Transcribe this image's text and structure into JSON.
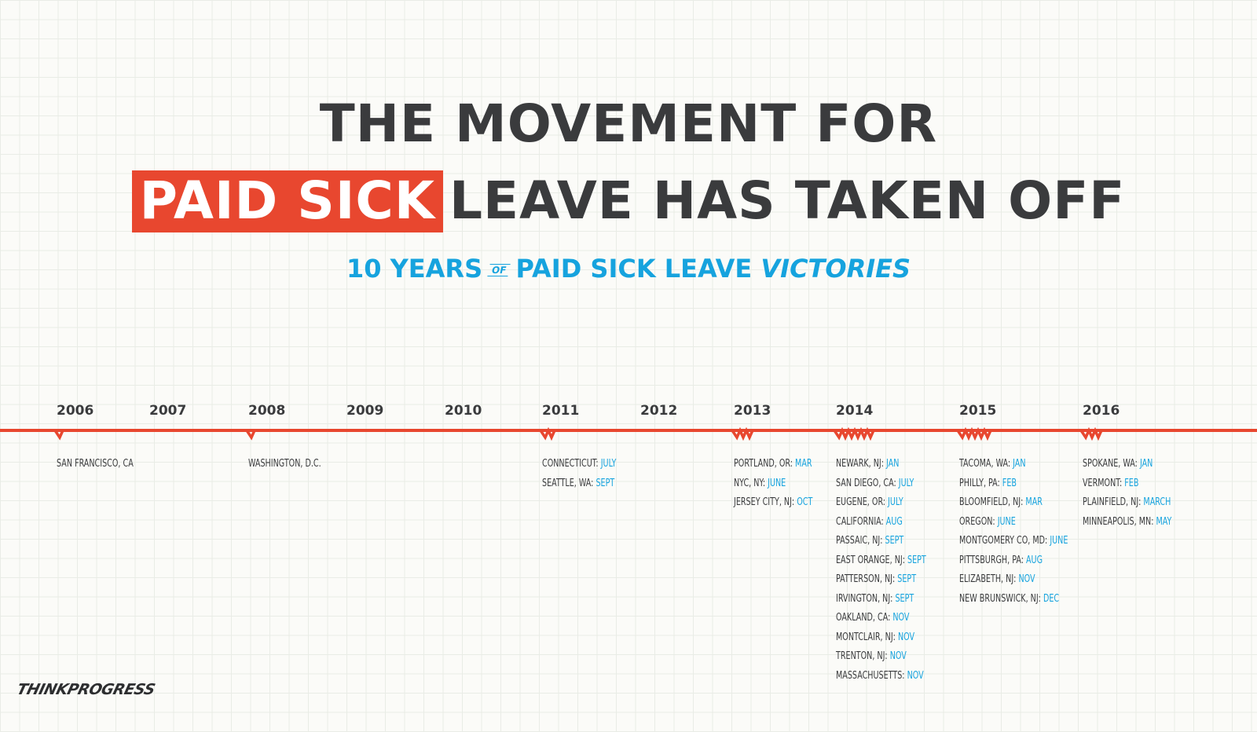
{
  "title": {
    "line1": "THE MOVEMENT FOR",
    "highlight": "PAID SICK",
    "line2_rest": "LEAVE HAS TAKEN OFF"
  },
  "subtitle": {
    "part1": "10 YEARS",
    "of": "OF",
    "part2": "PAID SICK LEAVE",
    "emphasis": "VICTORIES"
  },
  "colors": {
    "accent_red": "#e8472f",
    "accent_blue": "#16a3de",
    "text_dark": "#3a3b3d"
  },
  "timeline": {
    "years": [
      "2006",
      "2007",
      "2008",
      "2009",
      "2010",
      "2011",
      "2012",
      "2013",
      "2014",
      "2015",
      "2016"
    ],
    "groups": [
      {
        "year": "2006",
        "events": [
          {
            "place": "SAN FRANCISCO, CA",
            "month": ""
          }
        ]
      },
      {
        "year": "2008",
        "events": [
          {
            "place": "WASHINGTON, D.C.",
            "month": ""
          }
        ]
      },
      {
        "year": "2011",
        "events": [
          {
            "place": "CONNECTICUT:",
            "month": "JULY"
          },
          {
            "place": "SEATTLE, WA:",
            "month": "SEPT"
          }
        ]
      },
      {
        "year": "2013",
        "events": [
          {
            "place": "PORTLAND, OR:",
            "month": "MAR"
          },
          {
            "place": "NYC, NY:",
            "month": "JUNE"
          },
          {
            "place": "JERSEY CITY, NJ:",
            "month": "OCT"
          }
        ]
      },
      {
        "year": "2014",
        "events": [
          {
            "place": "NEWARK, NJ:",
            "month": "JAN"
          },
          {
            "place": "SAN DIEGO, CA:",
            "month": "JULY"
          },
          {
            "place": "EUGENE, OR:",
            "month": "JULY"
          },
          {
            "place": "CALIFORNIA:",
            "month": "AUG"
          },
          {
            "place": "PASSAIC, NJ:",
            "month": "SEPT"
          },
          {
            "place": "EAST ORANGE, NJ:",
            "month": "SEPT"
          },
          {
            "place": "PATTERSON, NJ:",
            "month": "SEPT"
          },
          {
            "place": "IRVINGTON, NJ:",
            "month": "SEPT"
          },
          {
            "place": "OAKLAND, CA:",
            "month": "NOV"
          },
          {
            "place": "MONTCLAIR, NJ:",
            "month": "NOV"
          },
          {
            "place": "TRENTON, NJ:",
            "month": "NOV"
          },
          {
            "place": "MASSACHUSETTS:",
            "month": "NOV"
          }
        ]
      },
      {
        "year": "2015",
        "events": [
          {
            "place": "TACOMA, WA:",
            "month": "JAN"
          },
          {
            "place": "PHILLY, PA:",
            "month": "FEB"
          },
          {
            "place": "BLOOMFIELD, NJ:",
            "month": "MAR"
          },
          {
            "place": "OREGON:",
            "month": "JUNE"
          },
          {
            "place": "MONTGOMERY CO, MD:",
            "month": "JUNE"
          },
          {
            "place": "PITTSBURGH, PA:",
            "month": "AUG"
          },
          {
            "place": "ELIZABETH, NJ:",
            "month": "NOV"
          },
          {
            "place": "NEW BRUNSWICK, NJ:",
            "month": "DEC"
          }
        ]
      },
      {
        "year": "2016",
        "events": [
          {
            "place": "SPOKANE, WA:",
            "month": "JAN"
          },
          {
            "place": "VERMONT:",
            "month": "FEB"
          },
          {
            "place": "PLAINFIELD, NJ:",
            "month": "MARCH"
          },
          {
            "place": "MINNEAPOLIS, MN:",
            "month": "MAY"
          }
        ]
      }
    ]
  },
  "logo": "THINKPROGRESS"
}
